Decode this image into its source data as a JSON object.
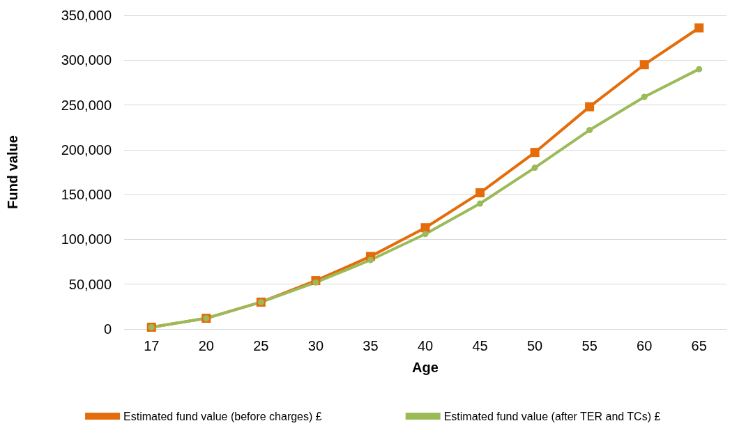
{
  "chart_data": {
    "type": "line",
    "xlabel": "Age",
    "ylabel": "Fund value",
    "categories": [
      "17",
      "20",
      "25",
      "30",
      "35",
      "40",
      "45",
      "50",
      "55",
      "60",
      "65"
    ],
    "series": [
      {
        "name": "Estimated fund value (before charges) £",
        "color": "#e46c0a",
        "marker": "square",
        "values": [
          2000,
          12000,
          30000,
          54000,
          81000,
          113000,
          152000,
          197000,
          248000,
          295000,
          336000
        ]
      },
      {
        "name": "Estimated fund value (after TER and TCs) £",
        "color": "#9bbb59",
        "marker": "circle",
        "values": [
          2000,
          12000,
          30000,
          52000,
          77000,
          106000,
          140000,
          180000,
          222000,
          259000,
          290000
        ]
      }
    ],
    "ylim": [
      0,
      350000
    ],
    "yticks": [
      {
        "value": 0,
        "label": "0"
      },
      {
        "value": 50000,
        "label": "50,000"
      },
      {
        "value": 100000,
        "label": "100,000"
      },
      {
        "value": 150000,
        "label": "150,000"
      },
      {
        "value": 200000,
        "label": "200,000"
      },
      {
        "value": 250000,
        "label": "250,000"
      },
      {
        "value": 300000,
        "label": "300,000"
      },
      {
        "value": 350000,
        "label": "350,000"
      }
    ],
    "grid": "y",
    "legend": "bottom",
    "line_style": "solid"
  }
}
